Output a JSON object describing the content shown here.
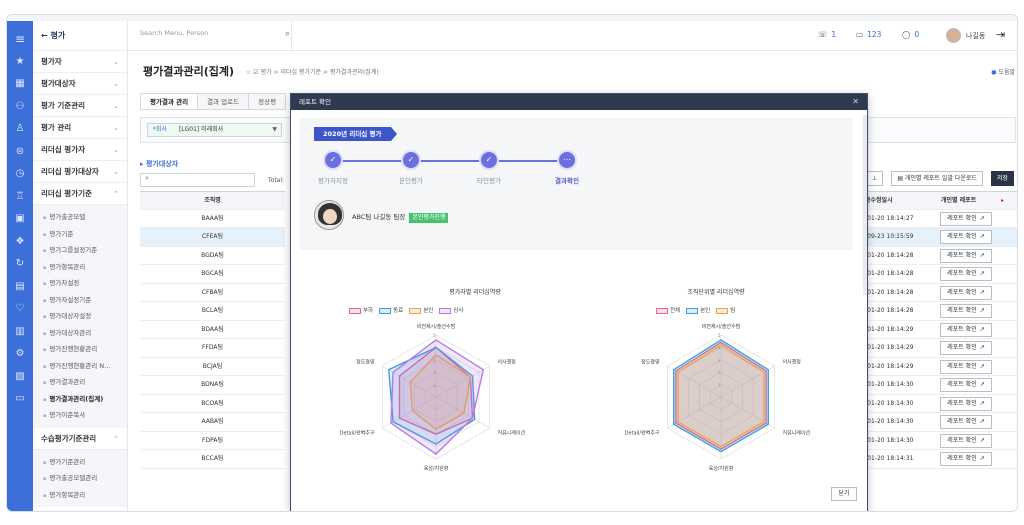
{
  "rail": {
    "icons": [
      "menu-icon",
      "star-icon",
      "grid-icon",
      "org-icon",
      "person-icon",
      "badge-icon",
      "clock-icon",
      "trophy-icon",
      "clipboard-icon",
      "gift-icon",
      "cycle-icon",
      "report-icon",
      "heart-icon",
      "calendar-icon",
      "gear-icon",
      "doc-icon",
      "chat-icon"
    ]
  },
  "sidebar": {
    "back_label": "평가",
    "menus": [
      {
        "label": "평가자"
      },
      {
        "label": "평가대상자"
      },
      {
        "label": "평가 기준관리"
      },
      {
        "label": "평가 관리"
      },
      {
        "label": "리더십 평가자"
      },
      {
        "label": "리더십 평가대상자"
      },
      {
        "label": "리더십 평가기준"
      }
    ],
    "submenu": [
      "평가출공모델",
      "평가기준",
      "평가그룹설정기준",
      "평가항목관리",
      "평가차설정",
      "평가자설정기준",
      "평가대상자설정",
      "평가대상자관리",
      "평가진행현황관리",
      "평가진행현황관리 N...",
      "평가결과관리",
      "평가결과관리(집계)",
      "평가이준복사"
    ],
    "active_sub": "평가결과관리(집계)",
    "menu2": {
      "label": "수습평가기준관리"
    },
    "submenu2": [
      "평가기준관리",
      "평가출공모델관리",
      "평가항목관리"
    ]
  },
  "header": {
    "search_placeholder": "Search Menu, Person",
    "stat1": "1",
    "stat2": "123",
    "stat3": "0",
    "user": "나길동"
  },
  "page": {
    "title": "평가결과관리(집계)",
    "breadcrumb": "☆  ☑ 평가  >  리더십 평가기준  >  평가결과관리(집계)",
    "help": "도움말",
    "tabs": [
      "평가결과 관리",
      "결과 업로드",
      "정상평"
    ],
    "filter_label": "*회사",
    "filter_value": "[LG01] 미래회사",
    "list_title": "평가대상자",
    "total_label": "Total:",
    "left_table": {
      "header": "조직명",
      "rows": [
        "BAAA팀",
        "CFEA팀",
        "BGDA팀",
        "BGCA팀",
        "CFBA팀",
        "BCLA팀",
        "BDAA팀",
        "FFDA팀",
        "BCJA팀",
        "BDNA팀",
        "BCOA팀",
        "AABA팀",
        "FDPA팀",
        "BCCA팀"
      ],
      "selected": 1
    },
    "buttons": {
      "report_bulk": "개인별 레포트 일괄 다운로드",
      "save": "저장"
    },
    "right_table": {
      "header_date": "종수정일시",
      "header_report": "개인별 레포트",
      "report_btn": "레포트 확인",
      "dates": [
        "-01-20 18:14:27",
        "-09-23 10:15:59",
        "-01-20 18:14:28",
        "-01-20 18:14:28",
        "-01-20 18:14:28",
        "-01-20 18:14:28",
        "-01-20 18:14:29",
        "-01-20 18:14:29",
        "-01-20 18:14:29",
        "-01-20 18:14:30",
        "-01-20 18:14:30",
        "-01-20 18:14:30",
        "-01-20 18:14:30",
        "-01-20 18:14:31"
      ]
    }
  },
  "modal": {
    "title": "레포트 확인",
    "eval_name": "2020년 리더십 평가",
    "steps": [
      "평가자지정",
      "본인평가",
      "타인평가",
      "결과확인"
    ],
    "profile_text": "ABC팀 나길동 팀장",
    "profile_badge": "본인평가진행",
    "close_label": "닫기"
  },
  "chart_data": [
    {
      "type": "radar",
      "title": "평가자별 리더십역량",
      "axes": [
        "비전제시/솔선수범",
        "의사결정",
        "커뮤니케이션",
        "육성/지원향",
        "Detail/완벽추구",
        "정도경영"
      ],
      "rmax": 5,
      "ticks": [
        "1",
        "2",
        "3",
        "4",
        "5"
      ],
      "series": [
        {
          "name": "부하",
          "color": "#e8678a",
          "values": [
            4.0,
            3.2,
            3.4,
            3.0,
            3.4,
            3.4
          ]
        },
        {
          "name": "동료",
          "color": "#3aa0e0",
          "values": [
            4.0,
            3.4,
            3.6,
            3.8,
            4.0,
            4.4
          ]
        },
        {
          "name": "본인",
          "color": "#f0a24a",
          "values": [
            3.4,
            3.2,
            2.6,
            2.6,
            2.2,
            2.4
          ]
        },
        {
          "name": "상사",
          "color": "#b57be6",
          "values": [
            4.6,
            4.4,
            3.4,
            4.6,
            4.2,
            4.0
          ]
        }
      ]
    },
    {
      "type": "radar",
      "title": "조직단위별 리더십역량",
      "axes": [
        "비전제시/솔선수범",
        "의사결정",
        "커뮤니케이션",
        "육성/지원향",
        "Detail/완벽추구",
        "정도경영"
      ],
      "rmax": 5,
      "ticks": [
        "1",
        "2",
        "3",
        "4",
        "5"
      ],
      "series": [
        {
          "name": "전체",
          "color": "#e8678a",
          "values": [
            4.4,
            4.2,
            4.2,
            4.2,
            4.2,
            4.2
          ]
        },
        {
          "name": "본인",
          "color": "#3aa0e0",
          "values": [
            4.6,
            4.4,
            4.4,
            4.4,
            4.4,
            4.4
          ]
        },
        {
          "name": "팀",
          "color": "#f0a24a",
          "values": [
            4.2,
            4.0,
            4.0,
            4.0,
            4.0,
            4.0
          ]
        }
      ]
    }
  ]
}
